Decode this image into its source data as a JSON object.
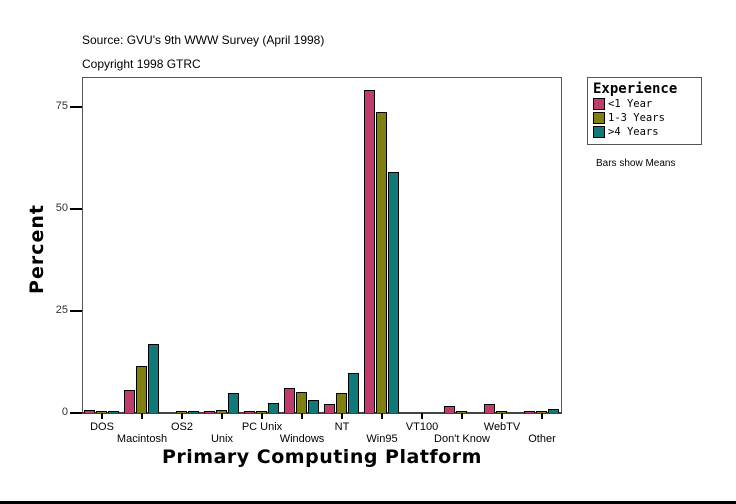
{
  "header": {
    "source": "Source: GVU's 9th WWW Survey (April 1998)",
    "copyright": "Copyright 1998 GTRC"
  },
  "legend": {
    "title": "Experience",
    "items": [
      {
        "label": "<1 Year",
        "color": "#c13c6c"
      },
      {
        "label": "1-3 Years",
        "color": "#808010"
      },
      {
        "label": ">4 Years",
        "color": "#107a7a"
      }
    ]
  },
  "note": "Bars show Means",
  "chart_data": {
    "type": "bar",
    "title": "Source: GVU's 9th WWW Survey (April 1998)",
    "subtitle": "Copyright 1998 GTRC",
    "xlabel": "Primary Computing Platform",
    "ylabel": "Percent",
    "ylim": [
      0,
      82
    ],
    "yticks": [
      0,
      25,
      50,
      75
    ],
    "grid": false,
    "legend_position": "right",
    "categories": [
      "DOS",
      "Macintosh",
      "OS2",
      "Unix",
      "PC Unix",
      "Windows",
      "NT",
      "Win95",
      "VT100",
      "Don't Know",
      "WebTV",
      "Other"
    ],
    "series": [
      {
        "name": "<1 Year",
        "color": "#c13c6c",
        "values": [
          0.8,
          5.6,
          0.0,
          0.2,
          0.2,
          6.1,
          2.2,
          79.2,
          0.0,
          1.8,
          2.2,
          0.5
        ]
      },
      {
        "name": "1-3 Years",
        "color": "#808010",
        "values": [
          0.5,
          11.5,
          0.2,
          0.8,
          0.5,
          5.1,
          4.9,
          73.8,
          0.0,
          0.5,
          0.2,
          0.5
        ]
      },
      {
        "name": ">4 Years",
        "color": "#107a7a",
        "values": [
          0.5,
          16.9,
          0.2,
          4.9,
          2.5,
          3.2,
          9.8,
          59.0,
          0.0,
          0.0,
          0.0,
          1.0
        ]
      }
    ],
    "note": "Bars show Means"
  }
}
